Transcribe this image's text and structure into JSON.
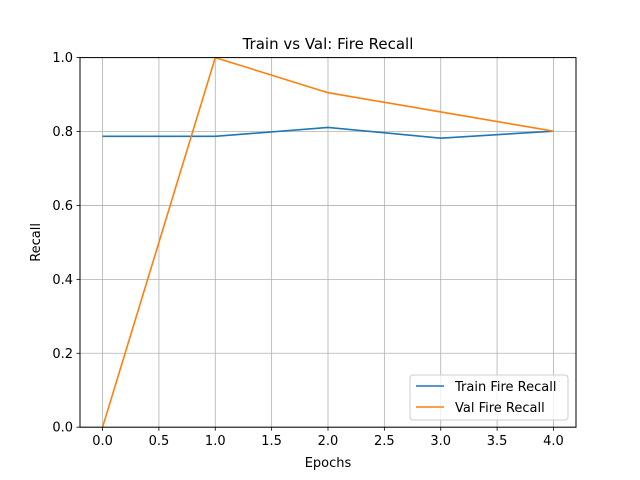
{
  "chart_data": {
    "type": "line",
    "title": "Train vs Val: Fire Recall",
    "xlabel": "Epochs",
    "ylabel": "Recall",
    "x": [
      0,
      1,
      2,
      3,
      4
    ],
    "xlim": [
      -0.2,
      4.2
    ],
    "ylim": [
      0.0,
      1.0
    ],
    "xticks": [
      0.0,
      0.5,
      1.0,
      1.5,
      2.0,
      2.5,
      3.0,
      3.5,
      4.0
    ],
    "xtick_labels": [
      "0.0",
      "0.5",
      "1.0",
      "1.5",
      "2.0",
      "2.5",
      "3.0",
      "3.5",
      "4.0"
    ],
    "yticks": [
      0.0,
      0.2,
      0.4,
      0.6,
      0.8,
      1.0
    ],
    "ytick_labels": [
      "0.0",
      "0.2",
      "0.4",
      "0.6",
      "0.8",
      "1.0"
    ],
    "grid": true,
    "legend_position": "lower-right",
    "series": [
      {
        "name": "Train Fire Recall",
        "color": "#1f77b4",
        "values": [
          0.787,
          0.787,
          0.811,
          0.782,
          0.801
        ]
      },
      {
        "name": "Val Fire Recall",
        "color": "#ff7f0e",
        "values": [
          0.0,
          1.0,
          0.905,
          0.853,
          0.801
        ]
      }
    ]
  }
}
